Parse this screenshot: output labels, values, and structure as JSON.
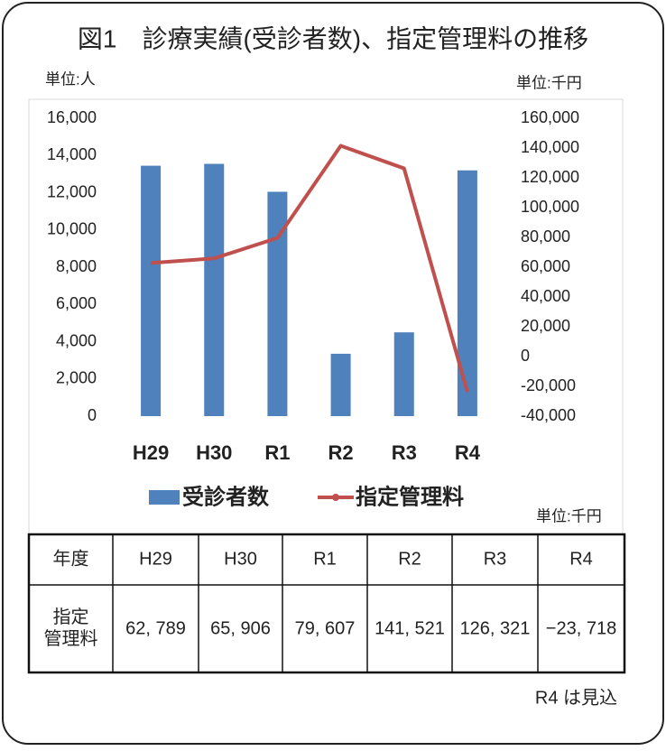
{
  "chart_data": {
    "type": "bar",
    "title": "図1　診療実績(受診者数)、指定管理料の推移",
    "y_unit": "単位:人",
    "y2_unit": "単位:千円",
    "categories": [
      "H29",
      "H30",
      "R1",
      "R2",
      "R3",
      "R4"
    ],
    "series": [
      {
        "name": "受診者数",
        "color": "#4f81bd",
        "type": "bar",
        "values": [
          13450,
          13550,
          12050,
          3350,
          4500,
          13200
        ]
      },
      {
        "name": "指定管理料",
        "color": "#c0504d",
        "type": "line",
        "axis": "y2",
        "values": [
          62789,
          65906,
          79607,
          141521,
          126321,
          -23718
        ],
        "value_labels": [
          "62, 789",
          "65, 906",
          "79, 607",
          "141, 521",
          "126, 321",
          "−23, 718"
        ]
      }
    ],
    "ylim": [
      0,
      16000
    ],
    "yticks": [
      0,
      {
        "value": 2000,
        "label": "2,000"
      },
      {
        "value": 4000,
        "label": "4,000"
      },
      {
        "value": 6000,
        "label": "6,000"
      },
      {
        "value": 8000,
        "label": "8,000"
      },
      {
        "value": 10000,
        "label": "10,000"
      },
      {
        "value": 12000,
        "label": "12,000"
      },
      {
        "value": 14000,
        "label": "14,000"
      },
      {
        "value": 16000,
        "label": "16,000"
      }
    ],
    "y2lim": [
      -40000,
      160000
    ],
    "y2ticks": [
      {
        "value": -40000,
        "label": "-40,000"
      },
      {
        "value": -20000,
        "label": "-20,000"
      },
      0,
      {
        "value": 20000,
        "label": "20,000"
      },
      {
        "value": 40000,
        "label": "40,000"
      },
      {
        "value": 60000,
        "label": "60,000"
      },
      {
        "value": 80000,
        "label": "80,000"
      },
      {
        "value": 100000,
        "label": "100,000"
      },
      {
        "value": 120000,
        "label": "120,000"
      },
      {
        "value": 140000,
        "label": "140,000"
      },
      {
        "value": 160000,
        "label": "160,000"
      }
    ],
    "grid": false,
    "legend": "bottom",
    "table": {
      "unit": "単位:千円",
      "header": "年度",
      "row_header": "指定\n管理料"
    },
    "note": "R4 は見込"
  }
}
